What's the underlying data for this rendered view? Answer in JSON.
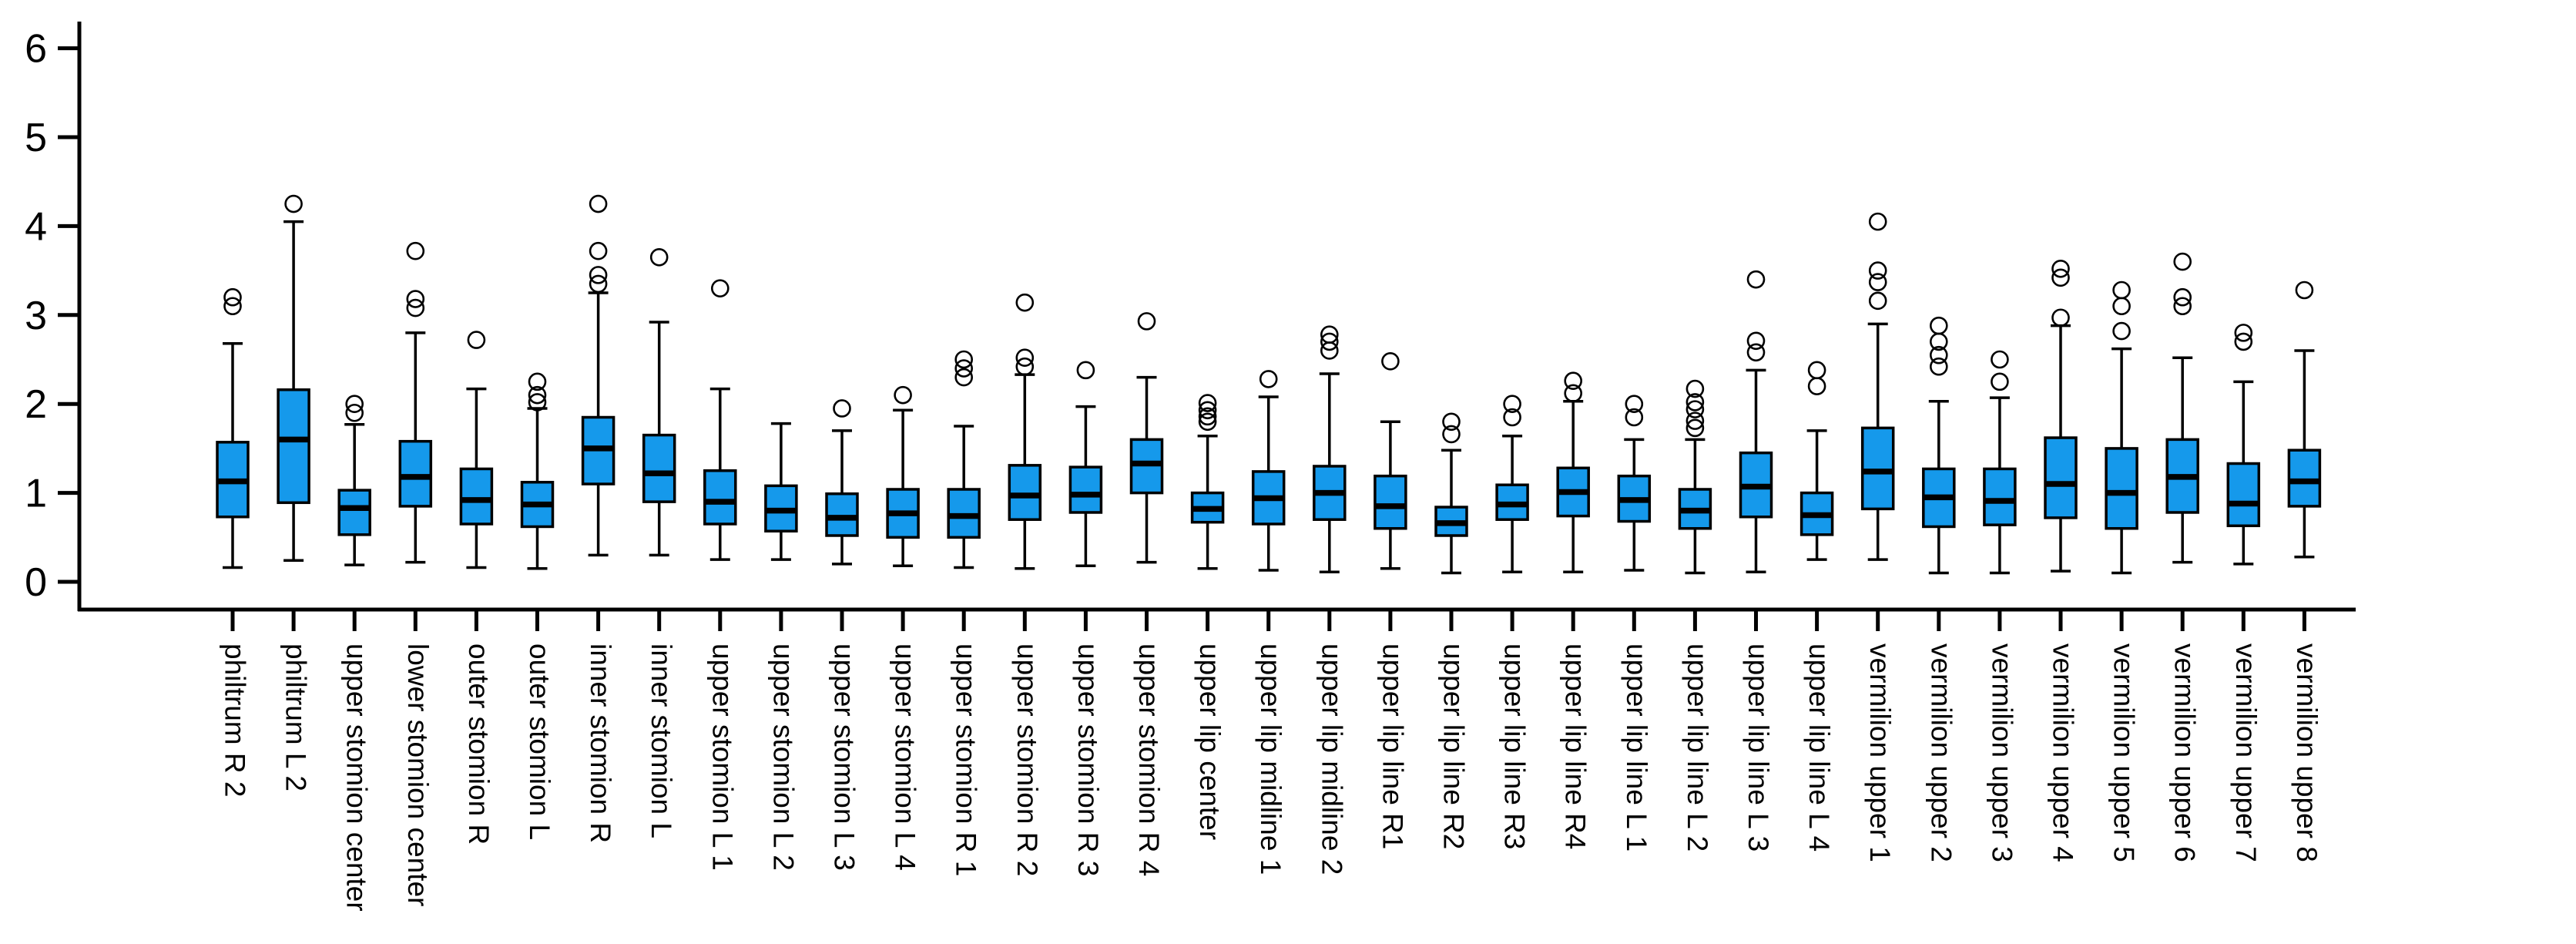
{
  "chart_data": {
    "type": "boxplot",
    "title": "",
    "xlabel": "",
    "ylabel": "",
    "ylim": [
      0,
      6
    ],
    "yticks": [
      "0",
      "1",
      "2",
      "3",
      "4",
      "5",
      "6"
    ],
    "grid": false,
    "legend": "none",
    "box_fill_color": "#1599EB",
    "box_border_color": "#000000",
    "background_color": "#FFFFFF",
    "categories": [
      "philtrum R 2",
      "philtrum L 2",
      "upper stomion center",
      "lower stomion center",
      "outer stomion R",
      "outer stomion L",
      "inner stomion R",
      "inner stomion L",
      "upper stomion L 1",
      "upper stomion L 2",
      "upper stomion L 3",
      "upper stomion L 4",
      "upper stomion R 1",
      "upper stomion R 2",
      "upper stomion R 3",
      "upper stomion R 4",
      "upper lip center",
      "upper lip midline 1",
      "upper lip midline 2",
      "upper lip line R1",
      "upper lip line R2",
      "upper lip line R3",
      "upper lip line R4",
      "upper lip line L 1",
      "upper lip line L 2",
      "upper lip line L 3",
      "upper lip line L 4",
      "vermilion upper 1",
      "vermilion upper 2",
      "vermilion upper 3",
      "vermilion upper 4",
      "vermilion upper 5",
      "vermilion upper 6",
      "vermilion upper 7",
      "vermilion upper 8"
    ],
    "series": [
      {
        "label": "philtrum R 2",
        "low": 0.16,
        "q1": 0.73,
        "median": 1.13,
        "q3": 1.57,
        "high": 2.68,
        "outliers": [
          3.1,
          3.2
        ]
      },
      {
        "label": "philtrum L 2",
        "low": 0.24,
        "q1": 0.89,
        "median": 1.6,
        "q3": 2.16,
        "high": 4.05,
        "outliers": [
          4.25
        ]
      },
      {
        "label": "upper stomion center",
        "low": 0.19,
        "q1": 0.53,
        "median": 0.83,
        "q3": 1.03,
        "high": 1.77,
        "outliers": [
          1.9,
          2.0
        ]
      },
      {
        "label": "lower stomion center",
        "low": 0.22,
        "q1": 0.85,
        "median": 1.18,
        "q3": 1.58,
        "high": 2.8,
        "outliers": [
          3.08,
          3.18,
          3.72
        ]
      },
      {
        "label": "outer stomion R",
        "low": 0.16,
        "q1": 0.65,
        "median": 0.92,
        "q3": 1.27,
        "high": 2.17,
        "outliers": [
          2.72
        ]
      },
      {
        "label": "outer stomion L",
        "low": 0.15,
        "q1": 0.62,
        "median": 0.87,
        "q3": 1.12,
        "high": 1.95,
        "outliers": [
          2.02,
          2.1,
          2.25
        ]
      },
      {
        "label": "inner stomion R",
        "low": 0.3,
        "q1": 1.1,
        "median": 1.5,
        "q3": 1.85,
        "high": 3.25,
        "outliers": [
          3.35,
          3.45,
          3.72,
          4.25
        ]
      },
      {
        "label": "inner stomion L",
        "low": 0.3,
        "q1": 0.9,
        "median": 1.22,
        "q3": 1.65,
        "high": 2.92,
        "outliers": [
          3.65
        ]
      },
      {
        "label": "upper stomion L 1",
        "low": 0.25,
        "q1": 0.65,
        "median": 0.9,
        "q3": 1.25,
        "high": 2.17,
        "outliers": [
          3.3
        ]
      },
      {
        "label": "upper stomion L 2",
        "low": 0.25,
        "q1": 0.57,
        "median": 0.8,
        "q3": 1.08,
        "high": 1.78,
        "outliers": []
      },
      {
        "label": "upper stomion L 3",
        "low": 0.2,
        "q1": 0.52,
        "median": 0.72,
        "q3": 0.99,
        "high": 1.7,
        "outliers": [
          1.95
        ]
      },
      {
        "label": "upper stomion L 4",
        "low": 0.18,
        "q1": 0.5,
        "median": 0.77,
        "q3": 1.04,
        "high": 1.93,
        "outliers": [
          2.1
        ]
      },
      {
        "label": "upper stomion R 1",
        "low": 0.16,
        "q1": 0.5,
        "median": 0.74,
        "q3": 1.04,
        "high": 1.75,
        "outliers": [
          2.3,
          2.4,
          2.5
        ]
      },
      {
        "label": "upper stomion R 2",
        "low": 0.15,
        "q1": 0.7,
        "median": 0.97,
        "q3": 1.31,
        "high": 2.33,
        "outliers": [
          2.42,
          2.52,
          3.14
        ]
      },
      {
        "label": "upper stomion R 3",
        "low": 0.18,
        "q1": 0.78,
        "median": 0.98,
        "q3": 1.29,
        "high": 1.97,
        "outliers": [
          2.38
        ]
      },
      {
        "label": "upper stomion R 4",
        "low": 0.22,
        "q1": 1.0,
        "median": 1.33,
        "q3": 1.6,
        "high": 2.3,
        "outliers": [
          2.93
        ]
      },
      {
        "label": "upper lip center",
        "low": 0.15,
        "q1": 0.67,
        "median": 0.82,
        "q3": 1.0,
        "high": 1.64,
        "outliers": [
          1.8,
          1.86,
          1.93,
          2.01
        ]
      },
      {
        "label": "upper lip midline 1",
        "low": 0.13,
        "q1": 0.65,
        "median": 0.94,
        "q3": 1.24,
        "high": 2.08,
        "outliers": [
          2.28
        ]
      },
      {
        "label": "upper lip midline 2",
        "low": 0.11,
        "q1": 0.7,
        "median": 1.0,
        "q3": 1.3,
        "high": 2.34,
        "outliers": [
          2.6,
          2.7,
          2.78
        ]
      },
      {
        "label": "upper lip line R1",
        "low": 0.15,
        "q1": 0.6,
        "median": 0.85,
        "q3": 1.19,
        "high": 1.8,
        "outliers": [
          2.48
        ]
      },
      {
        "label": "upper lip line R2",
        "low": 0.1,
        "q1": 0.52,
        "median": 0.66,
        "q3": 0.84,
        "high": 1.48,
        "outliers": [
          1.66,
          1.8
        ]
      },
      {
        "label": "upper lip line R3",
        "low": 0.11,
        "q1": 0.7,
        "median": 0.87,
        "q3": 1.09,
        "high": 1.64,
        "outliers": [
          1.85,
          2.0
        ]
      },
      {
        "label": "upper lip line R4",
        "low": 0.11,
        "q1": 0.74,
        "median": 1.01,
        "q3": 1.28,
        "high": 2.03,
        "outliers": [
          2.12,
          2.26
        ]
      },
      {
        "label": "upper lip line L 1",
        "low": 0.13,
        "q1": 0.68,
        "median": 0.92,
        "q3": 1.19,
        "high": 1.6,
        "outliers": [
          1.85,
          2.0
        ]
      },
      {
        "label": "upper lip line L 2",
        "low": 0.1,
        "q1": 0.6,
        "median": 0.8,
        "q3": 1.04,
        "high": 1.6,
        "outliers": [
          1.73,
          1.81,
          1.94,
          2.02,
          2.17
        ]
      },
      {
        "label": "upper lip line L 3",
        "low": 0.11,
        "q1": 0.73,
        "median": 1.07,
        "q3": 1.45,
        "high": 2.38,
        "outliers": [
          2.58,
          2.71,
          3.4
        ]
      },
      {
        "label": "upper lip line L 4",
        "low": 0.25,
        "q1": 0.53,
        "median": 0.75,
        "q3": 1.0,
        "high": 1.7,
        "outliers": [
          2.2,
          2.38
        ]
      },
      {
        "label": "vermilion upper 1",
        "low": 0.25,
        "q1": 0.82,
        "median": 1.24,
        "q3": 1.73,
        "high": 2.9,
        "outliers": [
          3.16,
          3.37,
          3.5,
          4.05
        ]
      },
      {
        "label": "vermilion upper 2",
        "low": 0.1,
        "q1": 0.62,
        "median": 0.95,
        "q3": 1.27,
        "high": 2.03,
        "outliers": [
          2.42,
          2.55,
          2.7,
          2.88
        ]
      },
      {
        "label": "vermilion upper 3",
        "low": 0.1,
        "q1": 0.64,
        "median": 0.91,
        "q3": 1.27,
        "high": 2.07,
        "outliers": [
          2.25,
          2.5
        ]
      },
      {
        "label": "vermilion upper 4",
        "low": 0.12,
        "q1": 0.72,
        "median": 1.1,
        "q3": 1.62,
        "high": 2.88,
        "outliers": [
          2.97,
          3.42,
          3.52
        ]
      },
      {
        "label": "vermilion upper 5",
        "low": 0.1,
        "q1": 0.6,
        "median": 1.0,
        "q3": 1.5,
        "high": 2.62,
        "outliers": [
          2.82,
          3.1,
          3.28
        ]
      },
      {
        "label": "vermilion upper 6",
        "low": 0.22,
        "q1": 0.78,
        "median": 1.18,
        "q3": 1.6,
        "high": 2.52,
        "outliers": [
          3.1,
          3.2,
          3.6
        ]
      },
      {
        "label": "vermilion upper 7",
        "low": 0.2,
        "q1": 0.63,
        "median": 0.88,
        "q3": 1.33,
        "high": 2.25,
        "outliers": [
          2.7,
          2.8
        ]
      },
      {
        "label": "vermilion upper 8",
        "low": 0.28,
        "q1": 0.85,
        "median": 1.13,
        "q3": 1.48,
        "high": 2.6,
        "outliers": [
          3.28
        ]
      }
    ],
    "layout_hints": {
      "x_tick_label_rotation_deg": 90,
      "y_axis_side": "left",
      "whisker_caps": true,
      "outlier_marker": "open-circle"
    }
  }
}
